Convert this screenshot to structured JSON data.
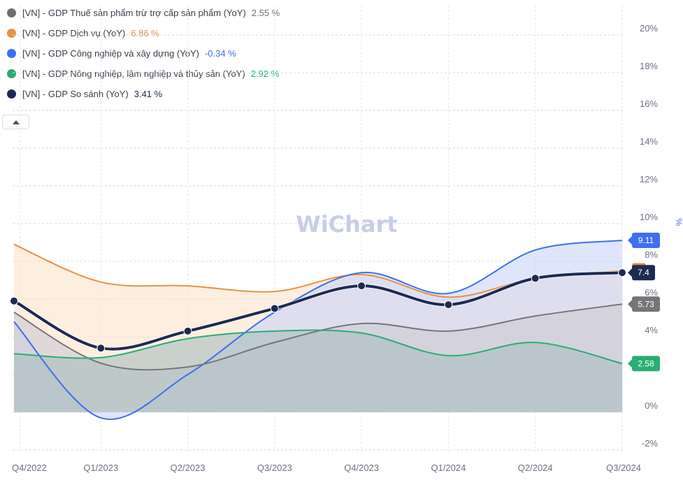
{
  "legend": [
    {
      "label": "[VN] - GDP Thuế sản phẩm trừ trợ cấp sản phẩm (YoY)",
      "value": "2.55 %",
      "color": "#6e6e70"
    },
    {
      "label": "[VN] - GDP Dịch vụ (YoY)",
      "value": "6.86 %",
      "color": "#e69245"
    },
    {
      "label": "[VN] - GDP Công nghiệp và xây dựng (YoY)",
      "value": "-0.34 %",
      "color": "#3f6ef0"
    },
    {
      "label": "[VN] - GDP Nông nghiệp, lâm nghiệp và thủy sản (YoY)",
      "value": "2.92 %",
      "color": "#2bad74"
    },
    {
      "label": "[VN] - GDP So sánh (YoY)",
      "value": "3.41 %",
      "color": "#1d2b52"
    }
  ],
  "watermark": "WiChart",
  "chart_data": {
    "type": "area",
    "x": [
      "Q4/2022",
      "Q1/2023",
      "Q2/2023",
      "Q3/2023",
      "Q4/2023",
      "Q1/2024",
      "Q2/2024",
      "Q3/2024"
    ],
    "y_unit": "%",
    "y_ticks": [
      "-2%",
      "0%",
      "2%",
      "4%",
      "6%",
      "8%",
      "10%",
      "12%",
      "14%",
      "16%",
      "18%",
      "20%"
    ],
    "ylim": [
      -2,
      21
    ],
    "grid": true,
    "series": [
      {
        "name": "[VN] - GDP Dịch vụ (YoY)",
        "color": "#e69245",
        "fill": "#fbe2cc",
        "values": [
          8.9,
          6.9,
          6.7,
          6.4,
          7.3,
          6.1,
          7.1,
          7.5
        ],
        "end_label": ""
      },
      {
        "name": "[VN] - GDP Công nghiệp và xây dựng (YoY)",
        "color": "#3f6ef0",
        "fill": "#c9d4f6",
        "values": [
          4.8,
          -0.3,
          2.0,
          5.3,
          7.4,
          6.3,
          8.6,
          9.11
        ],
        "end_label": "9.11"
      },
      {
        "name": "[VN] - GDP Thuế sản phẩm trừ trợ cấp sản phẩm (YoY)",
        "color": "#777579",
        "fill": "#cdc9d2",
        "values": [
          5.3,
          2.6,
          2.4,
          3.7,
          4.7,
          4.3,
          5.1,
          5.73
        ],
        "end_label": "5.73"
      },
      {
        "name": "[VN] - GDP Nông nghiệp, lâm nghiệp và thủy sản (YoY)",
        "color": "#2bad74",
        "fill": "#a8bec0",
        "values": [
          3.1,
          2.9,
          3.9,
          4.3,
          4.2,
          3.0,
          3.7,
          2.58
        ],
        "end_label": "2.58"
      },
      {
        "name": "[VN] - GDP So sánh (YoY)",
        "color": "#1d2b52",
        "fill": "none",
        "values": [
          5.9,
          3.4,
          4.3,
          5.5,
          6.7,
          5.7,
          7.1,
          7.4
        ],
        "end_label": "7.4"
      }
    ]
  }
}
